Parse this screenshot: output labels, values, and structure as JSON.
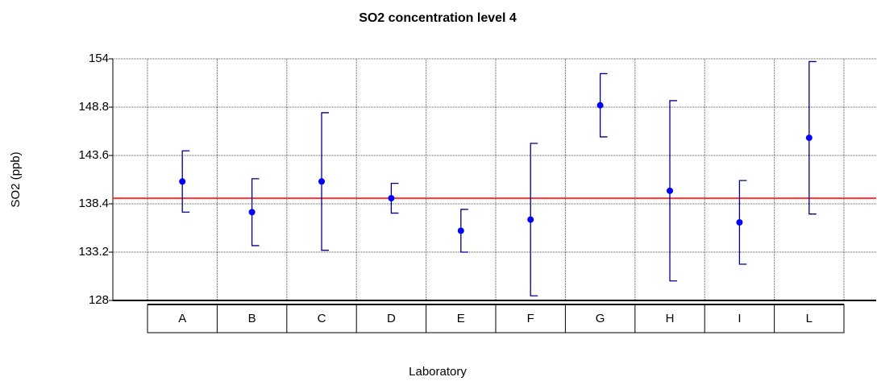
{
  "chart_data": {
    "type": "errorbar",
    "title": "SO2 concentration level 4",
    "x_label": "Laboratory",
    "y_label": "SO2 (ppb)",
    "categories": [
      "A",
      "B",
      "C",
      "D",
      "E",
      "F",
      "G",
      "H",
      "I",
      "L"
    ],
    "values": [
      140.8,
      137.5,
      140.8,
      139.0,
      135.5,
      136.7,
      149.0,
      139.8,
      136.4,
      145.5
    ],
    "errors": [
      3.3,
      3.6,
      7.4,
      1.6,
      2.3,
      8.2,
      3.4,
      9.7,
      4.5,
      8.2
    ],
    "color": "#0000ff",
    "bar_color": "#00008b",
    "reference_line": 139.0,
    "reference_color": "#ff3333",
    "ylim": [
      128,
      154
    ],
    "yticks": [
      128,
      133.2,
      138.4,
      143.6,
      148.8,
      154
    ],
    "grid": true
  }
}
